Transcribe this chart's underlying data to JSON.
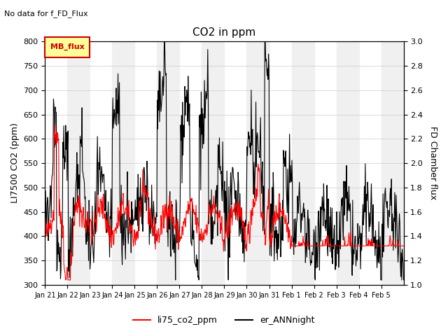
{
  "title": "CO2 in ppm",
  "subtitle": "No data for f_FD_Flux",
  "ylabel_left": "LI7500 CO2 (ppm)",
  "ylabel_right": "FD Chamber flux",
  "ylim_left": [
    300,
    800
  ],
  "ylim_right": [
    1.0,
    3.0
  ],
  "yticks_left": [
    300,
    350,
    400,
    450,
    500,
    550,
    600,
    650,
    700,
    750,
    800
  ],
  "yticks_right": [
    1.0,
    1.2,
    1.4,
    1.6,
    1.8,
    2.0,
    2.2,
    2.4,
    2.6,
    2.8,
    3.0
  ],
  "xlabel": "",
  "xtick_labels": [
    "Jan 21",
    "Jan 22",
    "Jan 23",
    "Jan 24",
    "Jan 25",
    "Jan 26",
    "Jan 27",
    "Jan 28",
    "Jan 29",
    "Jan 30",
    "Jan 31",
    "Feb 1",
    "Feb 2",
    "Feb 3",
    "Feb 4",
    "Feb 5"
  ],
  "legend_labels": [
    "li75_co2_ppm",
    "er_ANNnight"
  ],
  "legend_colors": [
    "#ff0000",
    "#000000"
  ],
  "inset_label": "MB_flux",
  "inset_bg": "#ffff99",
  "inset_edge": "#cc0000",
  "band_color_light": "#f0f0f0",
  "band_color_dark": "#ffffff",
  "line_color_red": "#ff0000",
  "line_color_black": "#000000",
  "grid_color": "#cccccc"
}
